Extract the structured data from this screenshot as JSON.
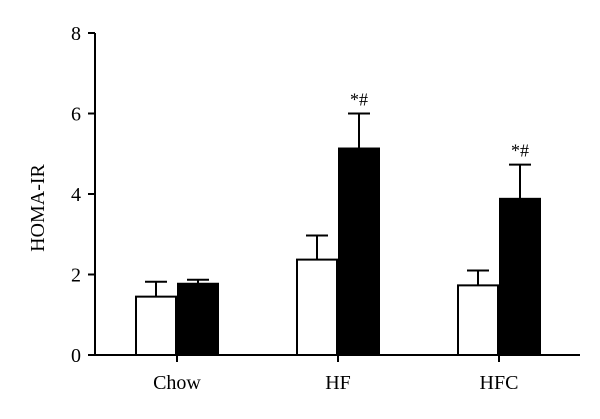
{
  "chart_data": {
    "type": "bar",
    "title": "",
    "xlabel": "",
    "ylabel": "HOMA-IR",
    "ylim": [
      0,
      8
    ],
    "yticks": [
      "0",
      "2",
      "4",
      "6",
      "8"
    ],
    "categories": [
      "Chow",
      "HF",
      "HFC"
    ],
    "grid": false,
    "legend": "none",
    "series": [
      {
        "fill": "#ffffff",
        "values": [
          1.45,
          2.37,
          1.73
        ],
        "errors": [
          0.37,
          0.6,
          0.37
        ]
      },
      {
        "fill": "#000000",
        "values": [
          1.77,
          5.13,
          3.88
        ],
        "errors": [
          0.1,
          0.87,
          0.85
        ]
      }
    ],
    "annotations": [
      {
        "category": "HF",
        "series": 1,
        "text": "*#"
      },
      {
        "category": "HFC",
        "series": 1,
        "text": "*#"
      }
    ]
  }
}
